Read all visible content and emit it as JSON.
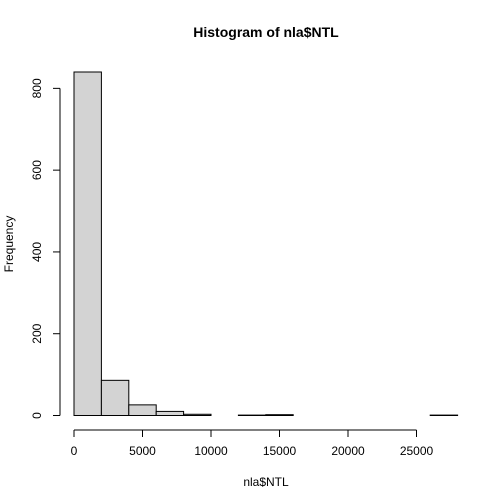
{
  "chart_data": {
    "type": "bar",
    "title": "Histogram of nla$NTL",
    "xlabel": "nla$NTL",
    "ylabel": "Frequency",
    "bins": [
      {
        "x0": 0,
        "x1": 2000,
        "count": 840
      },
      {
        "x0": 2000,
        "x1": 4000,
        "count": 86
      },
      {
        "x0": 4000,
        "x1": 6000,
        "count": 26
      },
      {
        "x0": 6000,
        "x1": 8000,
        "count": 10
      },
      {
        "x0": 8000,
        "x1": 10000,
        "count": 3
      },
      {
        "x0": 10000,
        "x1": 12000,
        "count": 0
      },
      {
        "x0": 12000,
        "x1": 14000,
        "count": 1
      },
      {
        "x0": 14000,
        "x1": 16000,
        "count": 2
      },
      {
        "x0": 16000,
        "x1": 18000,
        "count": 0
      },
      {
        "x0": 18000,
        "x1": 20000,
        "count": 0
      },
      {
        "x0": 20000,
        "x1": 22000,
        "count": 0
      },
      {
        "x0": 22000,
        "x1": 24000,
        "count": 0
      },
      {
        "x0": 24000,
        "x1": 26000,
        "count": 0
      },
      {
        "x0": 26000,
        "x1": 28000,
        "count": 1
      }
    ],
    "xlim": [
      0,
      28000
    ],
    "ylim": [
      0,
      840
    ],
    "x_ticks": [
      0,
      5000,
      10000,
      15000,
      20000,
      25000
    ],
    "y_ticks": [
      0,
      200,
      400,
      600,
      800
    ],
    "bar_fill": "#d3d3d3",
    "bar_stroke": "#000000",
    "grid": false
  }
}
